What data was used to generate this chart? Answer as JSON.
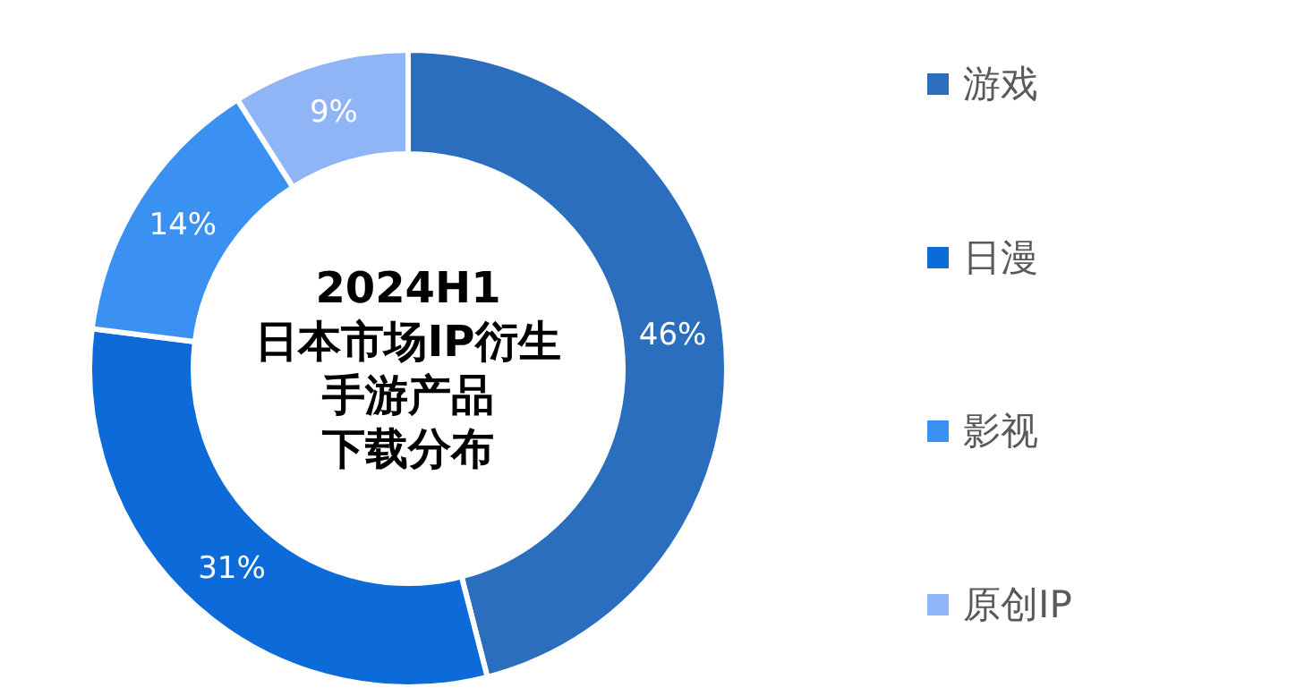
{
  "chart_data": {
    "type": "donut",
    "title": "2024H1",
    "subtitle": "日本市场IP衍生",
    "annotations": [
      "手游产品",
      "下载分布"
    ],
    "value_labels": [
      "46%",
      "31%",
      "14%",
      "9%"
    ],
    "categories": [
      "游戏",
      "日漫",
      "影视",
      "原创IP"
    ],
    "values": [
      46,
      31,
      14,
      9
    ],
    "colors": [
      "#2a6ebd",
      "#0d6bd9",
      "#3b91f2",
      "#8fb5f7"
    ],
    "legend": "right"
  }
}
